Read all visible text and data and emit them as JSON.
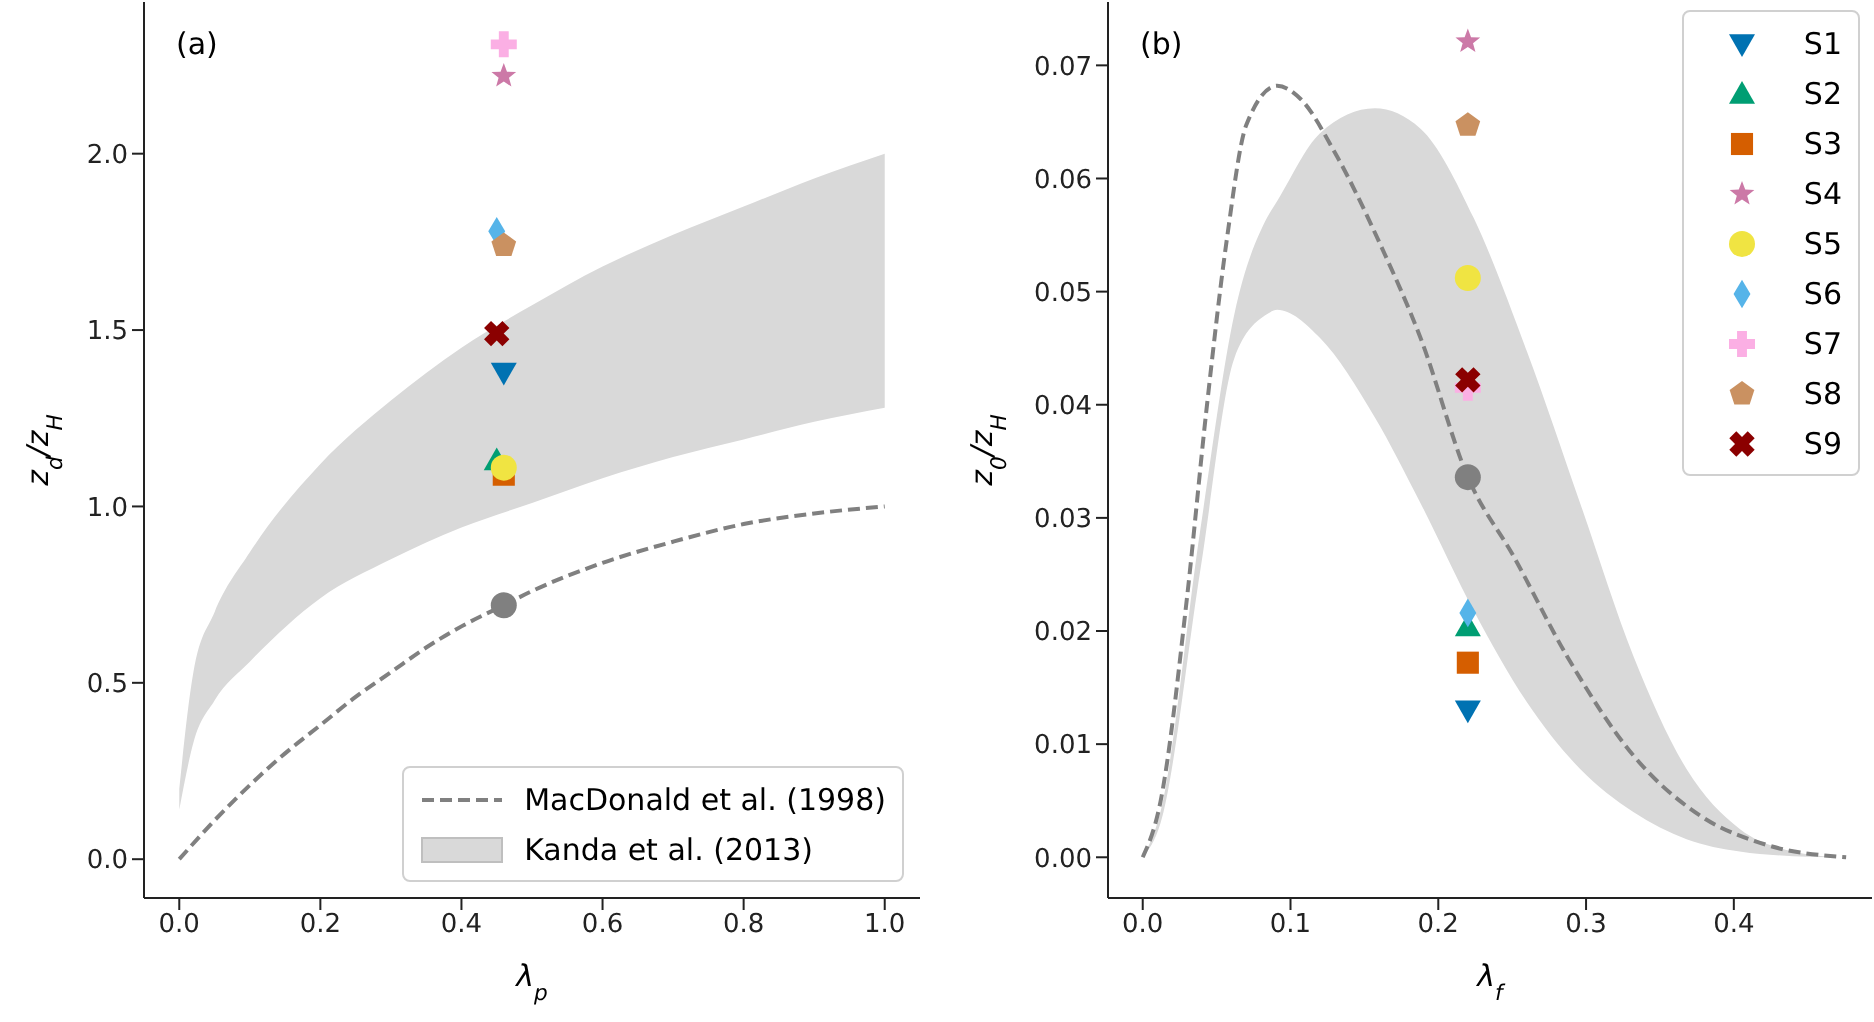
{
  "chart_data": [
    {
      "type": "scatter",
      "xlabel": "λ$_{p}$",
      "ylabel": "z$_{d}$/z$_{H}$",
      "annotations": [
        "(a)"
      ],
      "xlim": [
        -0.05,
        1.05
      ],
      "ylim": [
        -0.11,
        2.43
      ],
      "xticks": [
        {
          "value": 0,
          "label": "0.0"
        },
        {
          "value": 0.2,
          "label": "0.2"
        },
        {
          "value": 0.4,
          "label": "0.4"
        },
        {
          "value": 0.6,
          "label": "0.6"
        },
        {
          "value": 0.8,
          "label": "0.8"
        },
        {
          "value": 1,
          "label": "1.0"
        }
      ],
      "yticks": [
        {
          "value": 0,
          "label": "0.0"
        },
        {
          "value": 0.5,
          "label": "0.5"
        },
        {
          "value": 1,
          "label": "1.0"
        },
        {
          "value": 1.5,
          "label": "1.5"
        },
        {
          "value": 2,
          "label": "2.0"
        }
      ],
      "legend": "bottom right",
      "series": [
        {
          "name": "MacDonald et al. (1998)",
          "type": "line",
          "color": "#808080",
          "line_style": "dashed",
          "x": [
            0,
            0.05,
            0.1,
            0.15,
            0.2,
            0.25,
            0.3,
            0.35,
            0.4,
            0.46,
            0.5,
            0.6,
            0.7,
            0.8,
            0.9,
            1.0
          ],
          "values": [
            0,
            0.11,
            0.21,
            0.3,
            0.38,
            0.46,
            0.53,
            0.6,
            0.66,
            0.72,
            0.76,
            0.84,
            0.9,
            0.95,
            0.98,
            1.0
          ]
        },
        {
          "name": "Kanda et al. (2013)",
          "type": "area",
          "color": "#d9d9d9",
          "x": [
            0,
            0.02,
            0.05,
            0.1,
            0.2,
            0.3,
            0.4,
            0.5,
            0.6,
            0.7,
            0.8,
            0.9,
            1.0
          ],
          "values": [
            null,
            null,
            null,
            null,
            null,
            null,
            null,
            null,
            null,
            null,
            null,
            null,
            null
          ],
          "lower": [
            0.14,
            0.33,
            0.45,
            0.56,
            0.74,
            0.85,
            0.94,
            1.01,
            1.08,
            1.14,
            1.19,
            1.24,
            1.28
          ],
          "upper": [
            0.2,
            0.53,
            0.7,
            0.87,
            1.12,
            1.3,
            1.45,
            1.57,
            1.68,
            1.77,
            1.85,
            1.93,
            2.0
          ]
        },
        {
          "marker": "circle",
          "color": "#808080",
          "x": [
            0.46
          ],
          "values": [
            0.72
          ]
        },
        {
          "marker": "triangle-down",
          "color": "#0072b2",
          "x": [
            0.46
          ],
          "values": [
            1.38
          ]
        },
        {
          "marker": "triangle",
          "color": "#009e73",
          "x": [
            0.45
          ],
          "values": [
            1.13
          ]
        },
        {
          "marker": "square",
          "color": "#d55e00",
          "x": [
            0.46
          ],
          "values": [
            1.09
          ]
        },
        {
          "marker": "star",
          "color": "#cc79a7",
          "x": [
            0.46
          ],
          "values": [
            2.22
          ]
        },
        {
          "marker": "circle",
          "color": "#f0e442",
          "x": [
            0.46
          ],
          "values": [
            1.11
          ]
        },
        {
          "marker": "diamond",
          "color": "#56b4e9",
          "x": [
            0.45
          ],
          "values": [
            1.78
          ]
        },
        {
          "marker": "plus",
          "color": "#fbafe4",
          "x": [
            0.46
          ],
          "values": [
            2.31
          ]
        },
        {
          "color": "#ca9161",
          "x": [
            0.46
          ],
          "values": [
            1.74
          ]
        },
        {
          "marker": "x",
          "color": "#8b0000",
          "x": [
            0.45
          ],
          "values": [
            1.49
          ]
        }
      ]
    },
    {
      "type": "scatter",
      "xlabel": "λ$_{f}$",
      "ylabel": "z$_{0}$/z$_{H}$",
      "annotations": [
        "(b)"
      ],
      "xlim": [
        -0.0235,
        0.4935
      ],
      "ylim": [
        -0.0036,
        0.0756
      ],
      "xticks": [
        {
          "value": 0,
          "label": "0.0"
        },
        {
          "value": 0.1,
          "label": "0.1"
        },
        {
          "value": 0.2,
          "label": "0.2"
        },
        {
          "value": 0.3,
          "label": "0.3"
        },
        {
          "value": 0.4,
          "label": "0.4"
        }
      ],
      "yticks": [
        {
          "value": 0,
          "label": "0.00"
        },
        {
          "value": 0.01,
          "label": "0.01"
        },
        {
          "value": 0.02,
          "label": "0.02"
        },
        {
          "value": 0.03,
          "label": "0.03"
        },
        {
          "value": 0.04,
          "label": "0.04"
        },
        {
          "value": 0.05,
          "label": "0.05"
        },
        {
          "value": 0.06,
          "label": "0.06"
        },
        {
          "value": 0.07,
          "label": "0.07"
        }
      ],
      "legend": "top right",
      "series": [
        {
          "type": "area",
          "color": "#d9d9d9",
          "x": [
            0,
            0.012,
            0.039,
            0.062,
            0.084,
            0.091,
            0.12,
            0.157,
            0.188,
            0.224,
            0.26,
            0.296,
            0.332,
            0.368,
            0.404,
            0.44,
            0.47
          ],
          "values": [
            null,
            null,
            null,
            null,
            null,
            null,
            null,
            null,
            null,
            null,
            null,
            null,
            null,
            null,
            null,
            null,
            null
          ],
          "lower": [
            0,
            0.003,
            0.0254,
            0.0441,
            0.048,
            0.0484,
            0.0459,
            0.0389,
            0.0313,
            0.0218,
            0.0137,
            0.0078,
            0.004,
            0.0016,
            0.0005,
            0.0001,
            0
          ],
          "upper": [
            0,
            0.004,
            0.029,
            0.048,
            0.0565,
            0.058,
            0.064,
            0.0662,
            0.0644,
            0.0565,
            0.0447,
            0.0313,
            0.0178,
            0.0078,
            0.0025,
            0.0005,
            0
          ]
        },
        {
          "type": "line",
          "color": "#808080",
          "line_style": "dashed",
          "x": [
            0,
            0.012,
            0.03,
            0.043,
            0.057,
            0.07,
            0.091,
            0.107,
            0.13,
            0.161,
            0.188,
            0.22,
            0.251,
            0.287,
            0.332,
            0.377,
            0.422,
            0.476
          ],
          "values": [
            0,
            0.0049,
            0.023,
            0.0394,
            0.0547,
            0.0647,
            0.0682,
            0.067,
            0.0623,
            0.0541,
            0.0459,
            0.0336,
            0.0266,
            0.0178,
            0.009,
            0.0037,
            0.0011,
            0
          ]
        },
        {
          "marker": "circle",
          "color": "#808080",
          "x": [
            0.22
          ],
          "values": [
            0.0336
          ]
        },
        {
          "name": "S1",
          "marker": "triangle-down",
          "color": "#0072b2",
          "x": [
            0.22
          ],
          "values": [
            0.013
          ]
        },
        {
          "name": "S2",
          "marker": "triangle",
          "color": "#009e73",
          "x": [
            0.22
          ],
          "values": [
            0.0204
          ]
        },
        {
          "name": "S3",
          "marker": "square",
          "color": "#d55e00",
          "x": [
            0.22
          ],
          "values": [
            0.0172
          ]
        },
        {
          "name": "S4",
          "marker": "star",
          "color": "#cc79a7",
          "x": [
            0.22
          ],
          "values": [
            0.0721
          ]
        },
        {
          "name": "S5",
          "marker": "circle",
          "color": "#f0e442",
          "x": [
            0.22
          ],
          "values": [
            0.0512
          ]
        },
        {
          "name": "S6",
          "marker": "diamond",
          "color": "#56b4e9",
          "x": [
            0.22
          ],
          "values": [
            0.0216
          ]
        },
        {
          "name": "S7",
          "marker": "plus",
          "color": "#fbafe4",
          "x": [
            0.22
          ],
          "values": [
            0.0415
          ]
        },
        {
          "name": "S8",
          "color": "#ca9161",
          "x": [
            0.22
          ],
          "values": [
            0.0647
          ]
        },
        {
          "name": "S9",
          "marker": "x",
          "color": "#8b0000",
          "x": [
            0.22
          ],
          "values": [
            0.0422
          ]
        }
      ]
    }
  ]
}
